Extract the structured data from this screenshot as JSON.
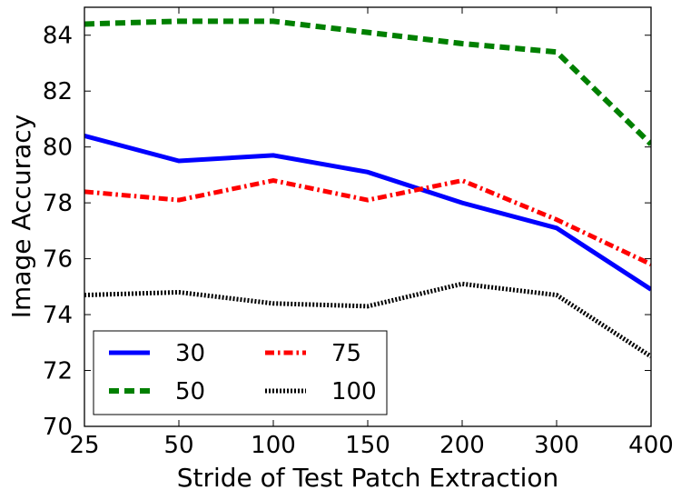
{
  "chart_data": {
    "type": "line",
    "title": "",
    "xlabel": "Stride of Test Patch Extraction",
    "ylabel": "Image Accuracy",
    "categories": [
      "25",
      "50",
      "100",
      "150",
      "200",
      "300",
      "400"
    ],
    "ylim": [
      70,
      85
    ],
    "yticks": [
      70,
      72,
      74,
      76,
      78,
      80,
      82,
      84
    ],
    "legend_position": "lower-left",
    "legend_columns": 2,
    "series": [
      {
        "name": "30",
        "color": "#0000ff",
        "style": "solid",
        "values": [
          80.4,
          79.5,
          79.7,
          79.1,
          78.0,
          77.1,
          74.9
        ]
      },
      {
        "name": "50",
        "color": "#008000",
        "style": "dashed",
        "values": [
          84.4,
          84.5,
          84.5,
          84.1,
          83.7,
          83.4,
          80.1
        ]
      },
      {
        "name": "75",
        "color": "#ff0000",
        "style": "dashdot",
        "values": [
          78.4,
          78.1,
          78.8,
          78.1,
          78.8,
          77.4,
          75.8
        ]
      },
      {
        "name": "100",
        "color": "#000000",
        "style": "dotted",
        "values": [
          74.7,
          74.8,
          74.4,
          74.3,
          75.1,
          74.7,
          72.5
        ]
      }
    ]
  }
}
